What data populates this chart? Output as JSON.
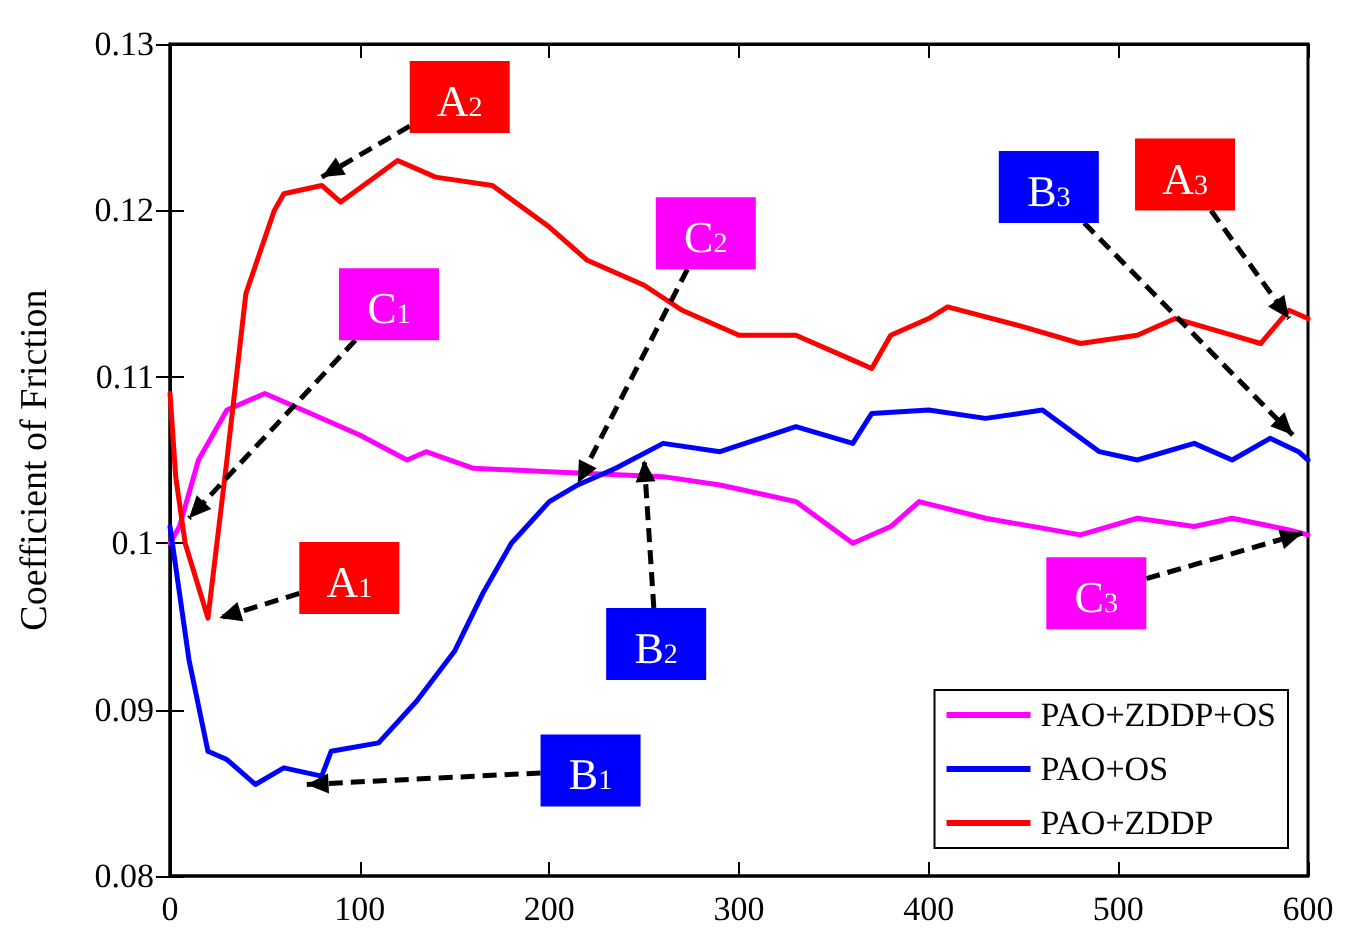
{
  "chart_data": {
    "type": "line",
    "ylabel": "Coefficient of Friction",
    "xlim": [
      0,
      600
    ],
    "xticks": [
      0,
      100,
      200,
      300,
      400,
      500,
      600
    ],
    "ylim": [
      0.08,
      0.13
    ],
    "yticks": [
      0.08,
      0.09,
      0.1,
      0.11,
      0.12,
      0.13
    ],
    "grid": false,
    "legend": "bottom right",
    "marker": "none",
    "line_style": "solid",
    "series": [
      {
        "name": "PAO+ZDDP+OS",
        "color": "#ff00ff",
        "x": [
          0,
          5,
          15,
          30,
          50,
          70,
          100,
          125,
          135,
          160,
          200,
          260,
          290,
          330,
          360,
          380,
          395,
          430,
          480,
          510,
          540,
          560,
          590,
          600
        ],
        "values": [
          0.1,
          0.101,
          0.105,
          0.108,
          0.109,
          0.108,
          0.1065,
          0.105,
          0.1055,
          0.1045,
          0.1043,
          0.104,
          0.1035,
          0.1025,
          0.1,
          0.101,
          0.1025,
          0.1015,
          0.1005,
          0.1015,
          0.101,
          0.1015,
          0.1008,
          0.1005
        ]
      },
      {
        "name": "PAO+OS",
        "color": "#0000ff",
        "x": [
          0,
          10,
          20,
          30,
          45,
          60,
          80,
          85,
          110,
          130,
          150,
          165,
          180,
          200,
          215,
          235,
          260,
          290,
          330,
          360,
          370,
          400,
          430,
          460,
          490,
          510,
          540,
          560,
          580,
          595,
          600
        ],
        "values": [
          0.101,
          0.093,
          0.0875,
          0.087,
          0.0855,
          0.0865,
          0.086,
          0.0875,
          0.088,
          0.0905,
          0.0935,
          0.097,
          0.1,
          0.1025,
          0.1035,
          0.1045,
          0.106,
          0.1055,
          0.107,
          0.106,
          0.1078,
          0.108,
          0.1075,
          0.108,
          0.1055,
          0.105,
          0.106,
          0.105,
          0.1063,
          0.1055,
          0.105
        ]
      },
      {
        "name": "PAO+ZDDP",
        "color": "#ff0000",
        "x": [
          0,
          3,
          8,
          20,
          30,
          40,
          55,
          60,
          80,
          90,
          120,
          140,
          170,
          200,
          220,
          250,
          270,
          300,
          330,
          360,
          370,
          380,
          400,
          410,
          450,
          480,
          510,
          530,
          560,
          575,
          590,
          600
        ],
        "values": [
          0.109,
          0.104,
          0.1,
          0.0955,
          0.105,
          0.115,
          0.12,
          0.121,
          0.1215,
          0.1205,
          0.123,
          0.122,
          0.1215,
          0.119,
          0.117,
          0.1155,
          0.114,
          0.1125,
          0.1125,
          0.111,
          0.1105,
          0.1125,
          0.1135,
          0.1142,
          0.113,
          0.112,
          0.1125,
          0.1135,
          0.1125,
          0.112,
          0.114,
          0.1135
        ]
      }
    ],
    "annotations": [
      {
        "text": "A$_{1}$",
        "x": 26,
        "y": 0.0955
      },
      {
        "text": "A$_{2}$",
        "x": 80,
        "y": 0.122
      },
      {
        "text": "A$_{3}$",
        "x": 590,
        "y": 0.1135
      },
      {
        "text": "B$_{1}$",
        "x": 72,
        "y": 0.0855
      },
      {
        "text": "B$_{2}$",
        "x": 250,
        "y": 0.105
      },
      {
        "text": "B$_{3}$",
        "x": 592,
        "y": 0.1065
      },
      {
        "text": "C$_{1}$",
        "x": 10,
        "y": 0.1015
      },
      {
        "text": "C$_{2}$",
        "x": 215,
        "y": 0.1036
      },
      {
        "text": "C$_{3}$",
        "x": 597,
        "y": 0.1006
      }
    ]
  }
}
